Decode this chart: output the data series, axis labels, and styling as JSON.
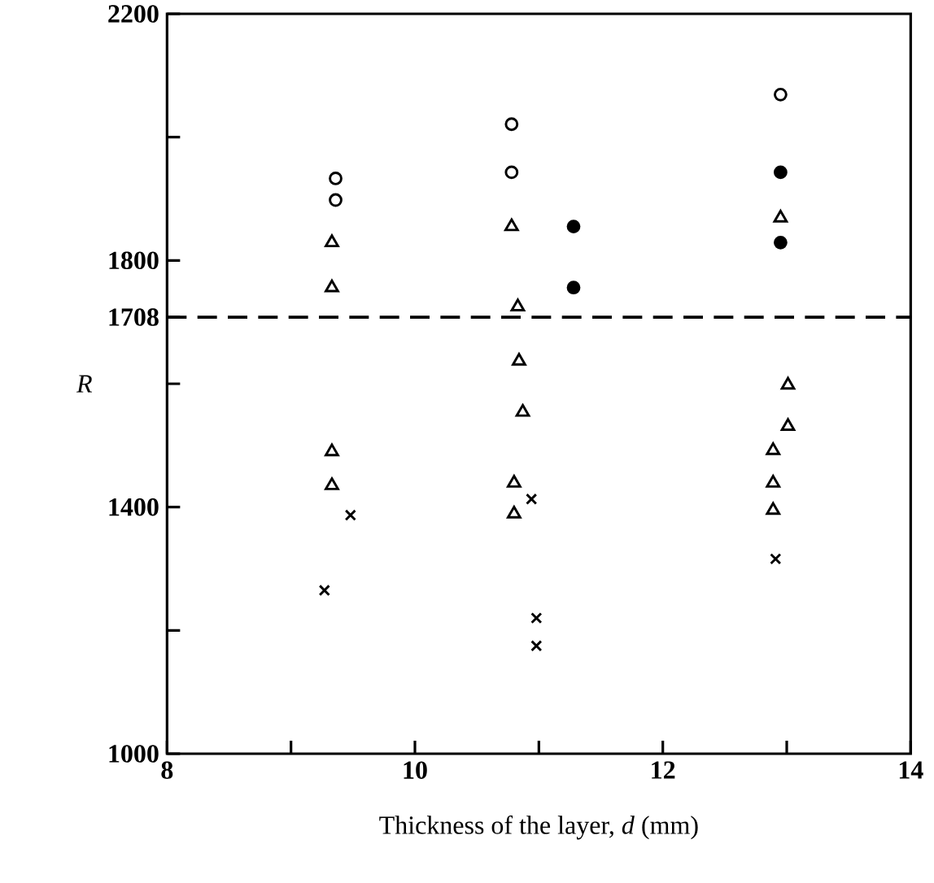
{
  "chart_data": {
    "type": "scatter",
    "xlabel": "Thickness of the layer, *d* (mm)",
    "ylabel": "R",
    "xlim": [
      8,
      14
    ],
    "xticks": [
      8,
      {
        "value": 9,
        "label": null
      },
      10,
      {
        "value": 11,
        "label": null
      },
      12,
      {
        "value": 13,
        "label": null
      },
      14
    ],
    "ylim": [
      1000,
      2200
    ],
    "yticks": [
      1000,
      {
        "value": 1200,
        "label": null
      },
      1400,
      {
        "value": 1600,
        "label": null
      },
      1708,
      1800,
      {
        "value": 2000,
        "label": null
      },
      2200
    ],
    "ref_lines": [
      {
        "axis": "y",
        "value": 1708,
        "line_style": "dashed",
        "color": "#000000"
      }
    ],
    "grid": false,
    "series": [
      {
        "marker": "circle",
        "color": "#ffffff",
        "x": [
          9.36,
          9.36,
          10.78,
          10.78,
          12.95
        ],
        "values": [
          1933,
          1898,
          2021,
          1943,
          2069
        ]
      },
      {
        "marker": "circle",
        "color": "#000000",
        "x": [
          11.28,
          11.28,
          12.95,
          12.95
        ],
        "values": [
          1855,
          1756,
          1943,
          1829
        ]
      },
      {
        "marker": "triangle",
        "color": "#ffffff",
        "x": [
          9.33,
          9.33,
          9.33,
          9.33,
          10.78,
          10.83,
          10.84,
          10.87,
          10.8,
          10.8,
          12.95,
          13.01,
          13.01,
          12.89,
          12.89,
          12.89
        ],
        "values": [
          1829,
          1756,
          1490,
          1435,
          1855,
          1725,
          1637,
          1554,
          1439,
          1389,
          1869,
          1598,
          1531,
          1492,
          1439,
          1395
        ]
      },
      {
        "marker": "cross",
        "color": "#000000",
        "x": [
          9.48,
          9.27,
          10.94,
          10.98,
          10.98,
          12.91
        ],
        "values": [
          1387,
          1265,
          1413,
          1220,
          1175,
          1316
        ]
      }
    ]
  }
}
